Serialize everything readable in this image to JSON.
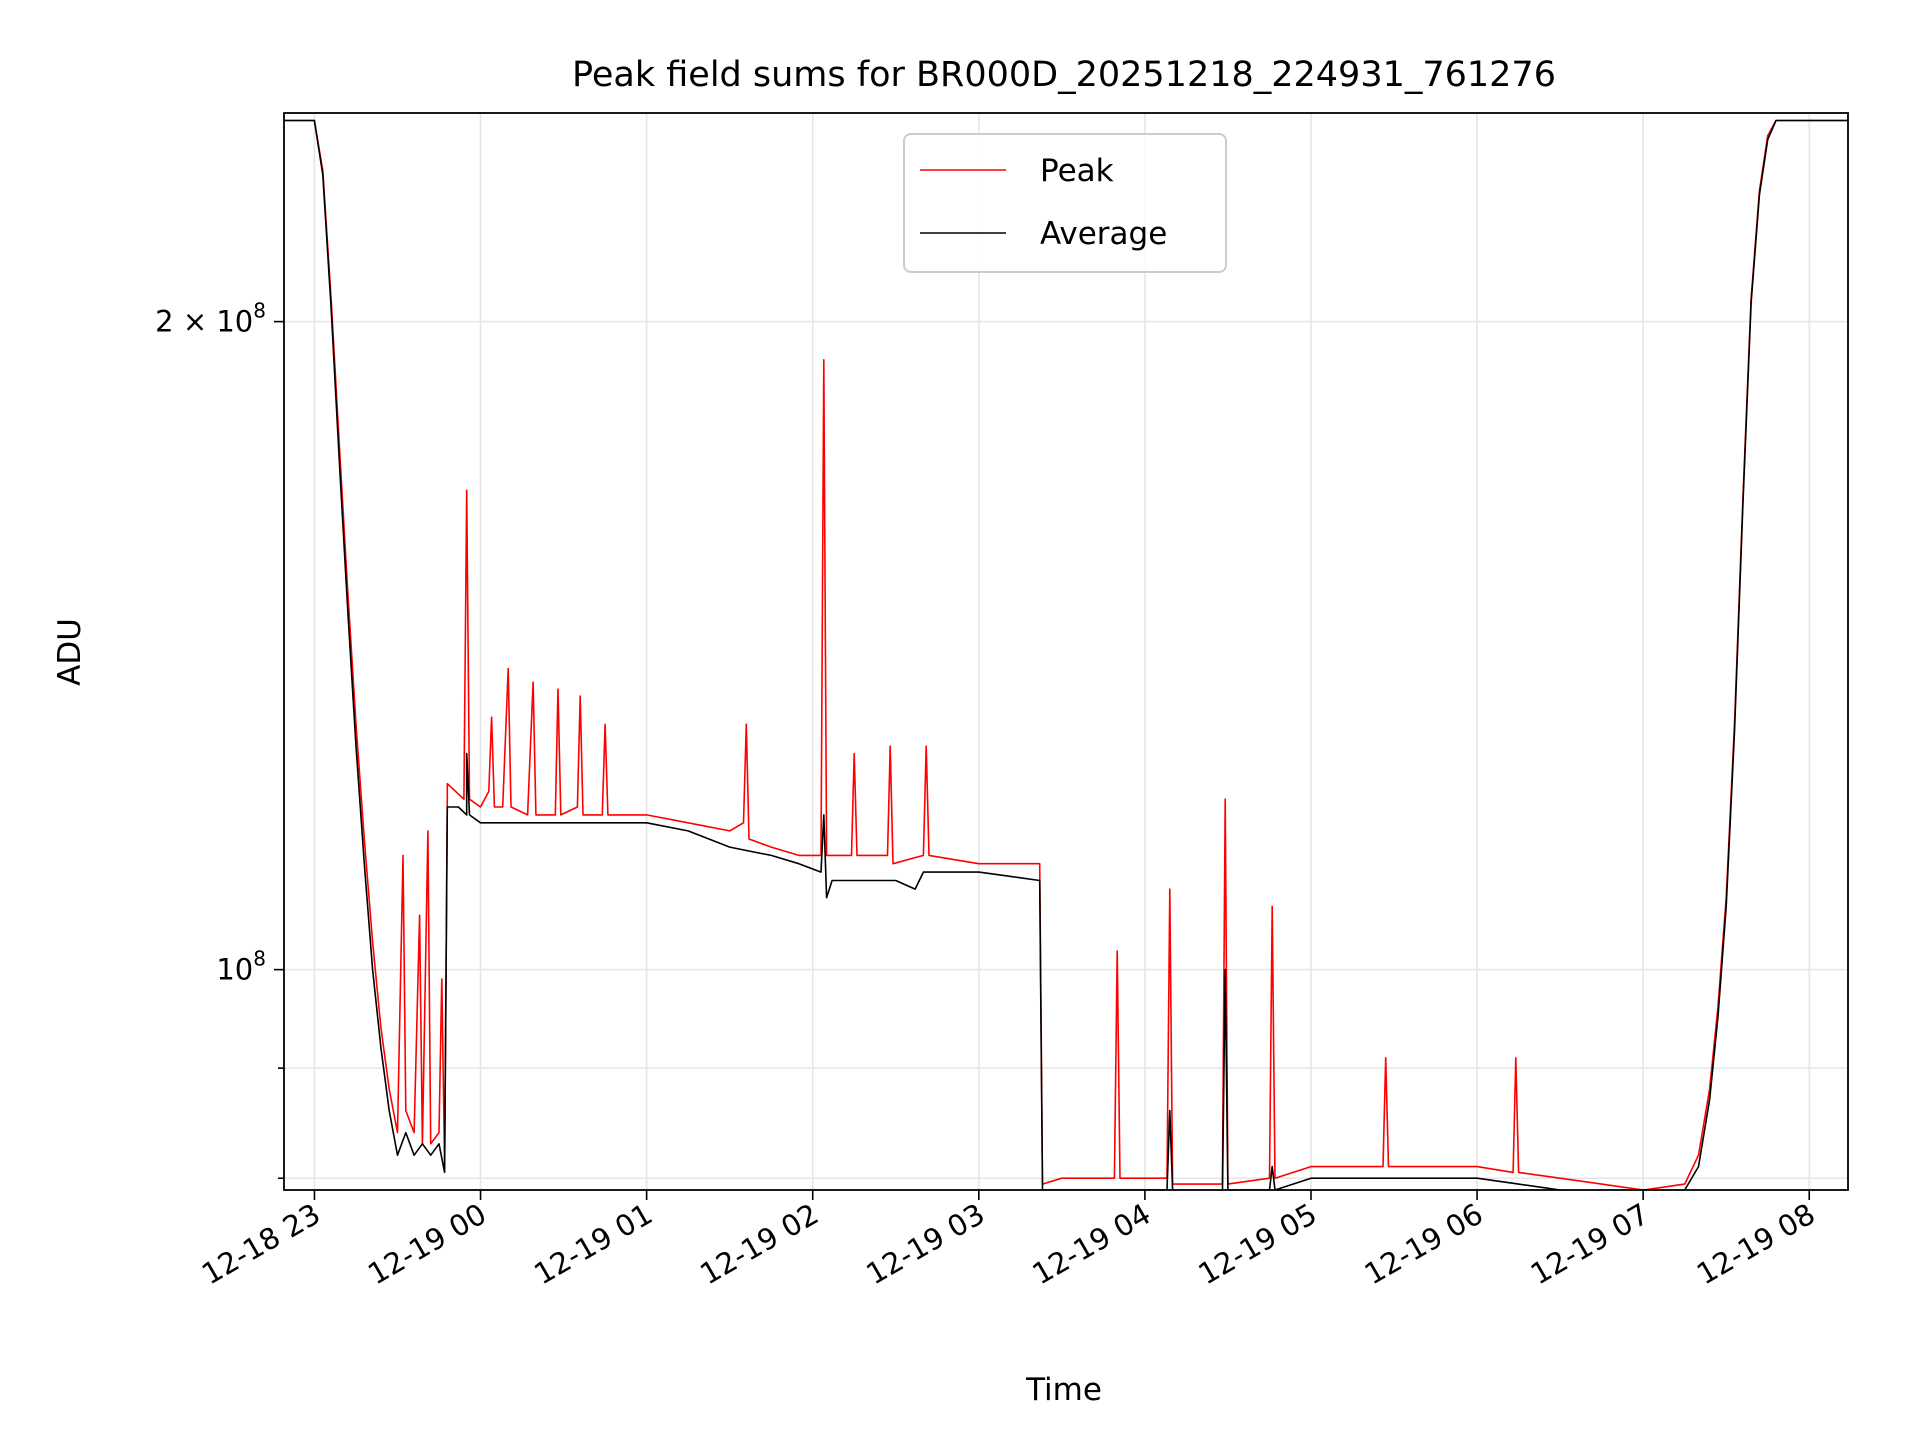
{
  "chart_data": {
    "type": "line",
    "title": "Peak field sums for BR000D_20251218_224931_761276",
    "xlabel": "Time",
    "ylabel": "ADU",
    "yscale": "log",
    "grid": true,
    "legend_position": "upper-center",
    "xlim": [
      "2025-12-18 22:49",
      "2025-12-19 08:14"
    ],
    "ylim": [
      79000000,
      250000000
    ],
    "x_ticks": [
      {
        "value": "2025-12-18 23:00",
        "label": "12-18 23"
      },
      {
        "value": "2025-12-19 00:00",
        "label": "12-19 00"
      },
      {
        "value": "2025-12-19 01:00",
        "label": "12-19 01"
      },
      {
        "value": "2025-12-19 02:00",
        "label": "12-19 02"
      },
      {
        "value": "2025-12-19 03:00",
        "label": "12-19 03"
      },
      {
        "value": "2025-12-19 04:00",
        "label": "12-19 04"
      },
      {
        "value": "2025-12-19 05:00",
        "label": "12-19 05"
      },
      {
        "value": "2025-12-19 06:00",
        "label": "12-19 06"
      },
      {
        "value": "2025-12-19 07:00",
        "label": "12-19 07"
      },
      {
        "value": "2025-12-19 08:00",
        "label": "12-19 08"
      }
    ],
    "y_major_ticks": [
      {
        "value": 100000000,
        "base": "10",
        "exp": "8",
        "mult": ""
      },
      {
        "value": 200000000,
        "base": "10",
        "exp": "8",
        "mult": "2 × "
      }
    ],
    "y_minor_ticks": [
      80000000,
      90000000
    ],
    "series": [
      {
        "name": "Peak",
        "color": "#ff0000",
        "points": [
          [
            "2025-12-18 22:49",
            248000000
          ],
          [
            "2025-12-18 23:00",
            248000000
          ],
          [
            "2025-12-18 23:03",
            235000000
          ],
          [
            "2025-12-18 23:06",
            205000000
          ],
          [
            "2025-12-18 23:09",
            175000000
          ],
          [
            "2025-12-18 23:12",
            150000000
          ],
          [
            "2025-12-18 23:15",
            130000000
          ],
          [
            "2025-12-18 23:18",
            115000000
          ],
          [
            "2025-12-18 23:21",
            103000000
          ],
          [
            "2025-12-18 23:24",
            94000000
          ],
          [
            "2025-12-18 23:27",
            88000000
          ],
          [
            "2025-12-18 23:30",
            84000000
          ],
          [
            "2025-12-18 23:32",
            113000000
          ],
          [
            "2025-12-18 23:33",
            86000000
          ],
          [
            "2025-12-18 23:36",
            84000000
          ],
          [
            "2025-12-18 23:38",
            106000000
          ],
          [
            "2025-12-18 23:39",
            83000000
          ],
          [
            "2025-12-18 23:41",
            116000000
          ],
          [
            "2025-12-18 23:42",
            83000000
          ],
          [
            "2025-12-18 23:45",
            84000000
          ],
          [
            "2025-12-18 23:46",
            99000000
          ],
          [
            "2025-12-18 23:47",
            81000000
          ],
          [
            "2025-12-18 23:48",
            120000000
          ],
          [
            "2025-12-18 23:48",
            122000000
          ],
          [
            "2025-12-18 23:51",
            121000000
          ],
          [
            "2025-12-18 23:54",
            120000000
          ],
          [
            "2025-12-18 23:55",
            167000000
          ],
          [
            "2025-12-18 23:56",
            120000000
          ],
          [
            "2025-12-19 00:00",
            119000000
          ],
          [
            "2025-12-19 00:03",
            121000000
          ],
          [
            "2025-12-19 00:04",
            131000000
          ],
          [
            "2025-12-19 00:05",
            119000000
          ],
          [
            "2025-12-19 00:08",
            119000000
          ],
          [
            "2025-12-19 00:10",
            138000000
          ],
          [
            "2025-12-19 00:11",
            119000000
          ],
          [
            "2025-12-19 00:17",
            118000000
          ],
          [
            "2025-12-19 00:19",
            136000000
          ],
          [
            "2025-12-19 00:20",
            118000000
          ],
          [
            "2025-12-19 00:27",
            118000000
          ],
          [
            "2025-12-19 00:28",
            135000000
          ],
          [
            "2025-12-19 00:29",
            118000000
          ],
          [
            "2025-12-19 00:35",
            119000000
          ],
          [
            "2025-12-19 00:36",
            134000000
          ],
          [
            "2025-12-19 00:37",
            118000000
          ],
          [
            "2025-12-19 00:44",
            118000000
          ],
          [
            "2025-12-19 00:45",
            130000000
          ],
          [
            "2025-12-19 00:46",
            118000000
          ],
          [
            "2025-12-19 01:00",
            118000000
          ],
          [
            "2025-12-19 01:15",
            117000000
          ],
          [
            "2025-12-19 01:30",
            116000000
          ],
          [
            "2025-12-19 01:35",
            117000000
          ],
          [
            "2025-12-19 01:36",
            130000000
          ],
          [
            "2025-12-19 01:37",
            115000000
          ],
          [
            "2025-12-19 01:45",
            114000000
          ],
          [
            "2025-12-19 01:55",
            113000000
          ],
          [
            "2025-12-19 02:03",
            113000000
          ],
          [
            "2025-12-19 02:04",
            192000000
          ],
          [
            "2025-12-19 02:05",
            113000000
          ],
          [
            "2025-12-19 02:14",
            113000000
          ],
          [
            "2025-12-19 02:15",
            126000000
          ],
          [
            "2025-12-19 02:16",
            113000000
          ],
          [
            "2025-12-19 02:27",
            113000000
          ],
          [
            "2025-12-19 02:28",
            127000000
          ],
          [
            "2025-12-19 02:29",
            112000000
          ],
          [
            "2025-12-19 02:40",
            113000000
          ],
          [
            "2025-12-19 02:41",
            127000000
          ],
          [
            "2025-12-19 02:42",
            113000000
          ],
          [
            "2025-12-19 03:00",
            112000000
          ],
          [
            "2025-12-19 03:20",
            112000000
          ],
          [
            "2025-12-19 03:22",
            112000000
          ],
          [
            "2025-12-19 03:23",
            79500000
          ],
          [
            "2025-12-19 03:30",
            80000000
          ],
          [
            "2025-12-19 03:45",
            80000000
          ],
          [
            "2025-12-19 03:49",
            80000000
          ],
          [
            "2025-12-19 03:50",
            102000000
          ],
          [
            "2025-12-19 03:51",
            80000000
          ],
          [
            "2025-12-19 04:08",
            80000000
          ],
          [
            "2025-12-19 04:09",
            109000000
          ],
          [
            "2025-12-19 04:10",
            79500000
          ],
          [
            "2025-12-19 04:20",
            79500000
          ],
          [
            "2025-12-19 04:28",
            79500000
          ],
          [
            "2025-12-19 04:29",
            120000000
          ],
          [
            "2025-12-19 04:30",
            79500000
          ],
          [
            "2025-12-19 04:45",
            80000000
          ],
          [
            "2025-12-19 04:46",
            107000000
          ],
          [
            "2025-12-19 04:47",
            80000000
          ],
          [
            "2025-12-19 05:00",
            81000000
          ],
          [
            "2025-12-19 05:15",
            81000000
          ],
          [
            "2025-12-19 05:26",
            81000000
          ],
          [
            "2025-12-19 05:27",
            91000000
          ],
          [
            "2025-12-19 05:28",
            81000000
          ],
          [
            "2025-12-19 05:45",
            81000000
          ],
          [
            "2025-12-19 06:00",
            81000000
          ],
          [
            "2025-12-19 06:13",
            80500000
          ],
          [
            "2025-12-19 06:14",
            91000000
          ],
          [
            "2025-12-19 06:15",
            80500000
          ],
          [
            "2025-12-19 06:30",
            80000000
          ],
          [
            "2025-12-19 06:45",
            79500000
          ],
          [
            "2025-12-19 07:00",
            79000000
          ],
          [
            "2025-12-19 07:15",
            79500000
          ],
          [
            "2025-12-19 07:20",
            82000000
          ],
          [
            "2025-12-19 07:24",
            88000000
          ],
          [
            "2025-12-19 07:27",
            96000000
          ],
          [
            "2025-12-19 07:30",
            108000000
          ],
          [
            "2025-12-19 07:33",
            130000000
          ],
          [
            "2025-12-19 07:36",
            165000000
          ],
          [
            "2025-12-19 07:39",
            205000000
          ],
          [
            "2025-12-19 07:42",
            230000000
          ],
          [
            "2025-12-19 07:45",
            244000000
          ],
          [
            "2025-12-19 07:48",
            248000000
          ],
          [
            "2025-12-19 08:14",
            248000000
          ]
        ]
      },
      {
        "name": "Average",
        "color": "#000000",
        "points": [
          [
            "2025-12-18 22:49",
            248000000
          ],
          [
            "2025-12-18 23:00",
            248000000
          ],
          [
            "2025-12-18 23:03",
            234000000
          ],
          [
            "2025-12-18 23:06",
            203000000
          ],
          [
            "2025-12-18 23:09",
            172000000
          ],
          [
            "2025-12-18 23:12",
            147000000
          ],
          [
            "2025-12-18 23:15",
            127000000
          ],
          [
            "2025-12-18 23:18",
            112000000
          ],
          [
            "2025-12-18 23:21",
            100000000
          ],
          [
            "2025-12-18 23:24",
            92000000
          ],
          [
            "2025-12-18 23:27",
            86000000
          ],
          [
            "2025-12-18 23:30",
            82000000
          ],
          [
            "2025-12-18 23:33",
            84000000
          ],
          [
            "2025-12-18 23:36",
            82000000
          ],
          [
            "2025-12-18 23:39",
            83000000
          ],
          [
            "2025-12-18 23:42",
            82000000
          ],
          [
            "2025-12-18 23:45",
            83000000
          ],
          [
            "2025-12-18 23:47",
            80500000
          ],
          [
            "2025-12-18 23:48",
            119000000
          ],
          [
            "2025-12-18 23:52",
            119000000
          ],
          [
            "2025-12-18 23:55",
            118000000
          ],
          [
            "2025-12-18 23:55",
            126000000
          ],
          [
            "2025-12-18 23:56",
            118000000
          ],
          [
            "2025-12-19 00:00",
            117000000
          ],
          [
            "2025-12-19 00:15",
            117000000
          ],
          [
            "2025-12-19 00:30",
            117000000
          ],
          [
            "2025-12-19 00:45",
            117000000
          ],
          [
            "2025-12-19 01:00",
            117000000
          ],
          [
            "2025-12-19 01:15",
            116000000
          ],
          [
            "2025-12-19 01:30",
            114000000
          ],
          [
            "2025-12-19 01:45",
            113000000
          ],
          [
            "2025-12-19 01:55",
            112000000
          ],
          [
            "2025-12-19 02:03",
            111000000
          ],
          [
            "2025-12-19 02:04",
            118000000
          ],
          [
            "2025-12-19 02:05",
            108000000
          ],
          [
            "2025-12-19 02:07",
            110000000
          ],
          [
            "2025-12-19 02:15",
            110000000
          ],
          [
            "2025-12-19 02:30",
            110000000
          ],
          [
            "2025-12-19 02:37",
            109000000
          ],
          [
            "2025-12-19 02:40",
            111000000
          ],
          [
            "2025-12-19 03:00",
            111000000
          ],
          [
            "2025-12-19 03:22",
            110000000
          ],
          [
            "2025-12-19 03:23",
            79000000
          ],
          [
            "2025-12-19 03:45",
            79000000
          ],
          [
            "2025-12-19 04:08",
            79000000
          ],
          [
            "2025-12-19 04:09",
            86000000
          ],
          [
            "2025-12-19 04:10",
            79000000
          ],
          [
            "2025-12-19 04:15",
            78500000
          ],
          [
            "2025-12-19 04:28",
            78500000
          ],
          [
            "2025-12-19 04:29",
            100000000
          ],
          [
            "2025-12-19 04:30",
            79000000
          ],
          [
            "2025-12-19 04:45",
            79000000
          ],
          [
            "2025-12-19 04:46",
            81000000
          ],
          [
            "2025-12-19 04:47",
            79000000
          ],
          [
            "2025-12-19 05:00",
            80000000
          ],
          [
            "2025-12-19 05:15",
            80000000
          ],
          [
            "2025-12-19 05:30",
            80000000
          ],
          [
            "2025-12-19 05:45",
            80000000
          ],
          [
            "2025-12-19 06:00",
            80000000
          ],
          [
            "2025-12-19 06:15",
            79500000
          ],
          [
            "2025-12-19 06:30",
            79000000
          ],
          [
            "2025-12-19 06:45",
            78500000
          ],
          [
            "2025-12-19 07:00",
            78500000
          ],
          [
            "2025-12-19 07:15",
            79000000
          ],
          [
            "2025-12-19 07:20",
            81000000
          ],
          [
            "2025-12-19 07:24",
            87000000
          ],
          [
            "2025-12-19 07:27",
            95000000
          ],
          [
            "2025-12-19 07:30",
            107000000
          ],
          [
            "2025-12-19 07:33",
            129000000
          ],
          [
            "2025-12-19 07:36",
            164000000
          ],
          [
            "2025-12-19 07:39",
            204000000
          ],
          [
            "2025-12-19 07:42",
            229000000
          ],
          [
            "2025-12-19 07:45",
            243000000
          ],
          [
            "2025-12-19 07:48",
            248000000
          ],
          [
            "2025-12-19 08:14",
            248000000
          ]
        ]
      }
    ]
  }
}
